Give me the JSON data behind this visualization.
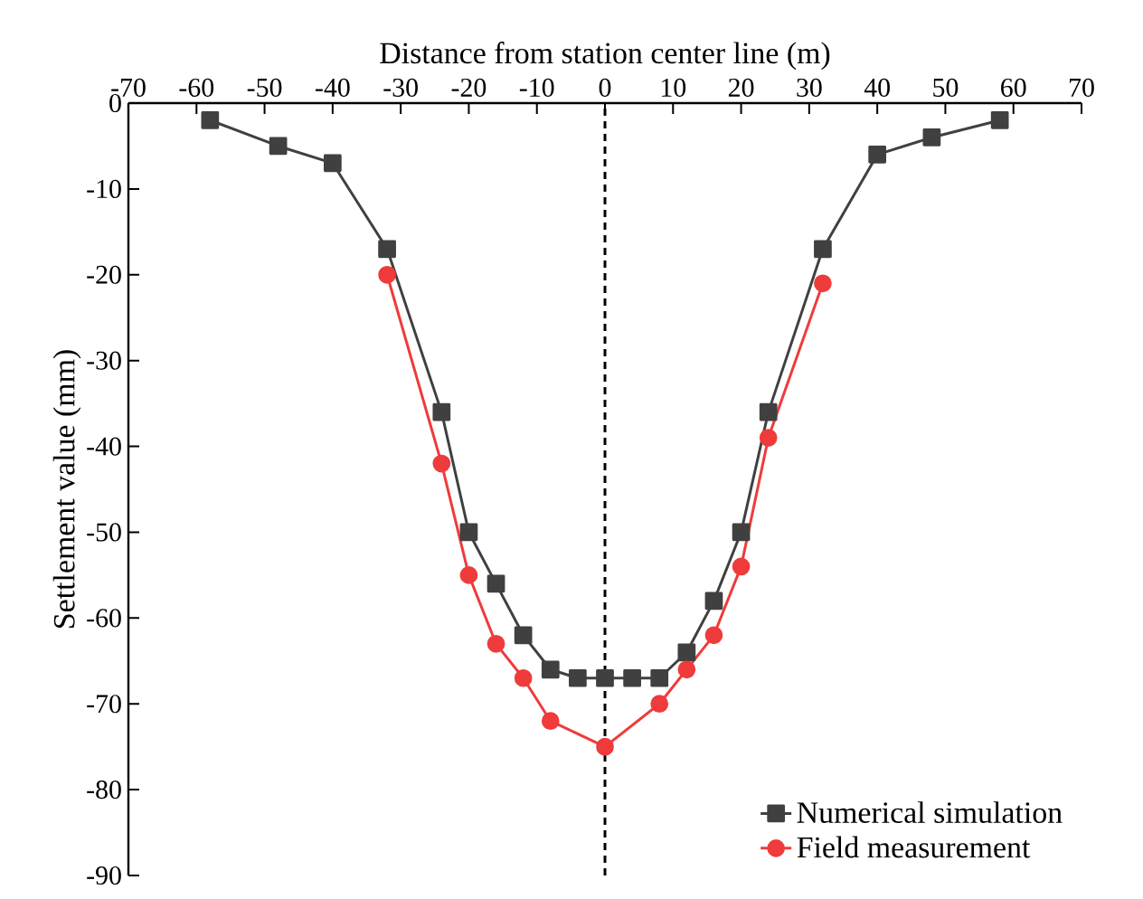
{
  "chart_data": {
    "type": "line",
    "xlabel": "Distance from station center line (m)",
    "ylabel": "Settlement value (mm)",
    "xlim": [
      -70,
      70
    ],
    "xticks": [
      -70,
      -60,
      -50,
      -40,
      -30,
      -20,
      -10,
      0,
      10,
      20,
      30,
      40,
      50,
      60,
      70
    ],
    "ylim": [
      -90,
      0
    ],
    "yticks": [
      -90,
      -80,
      -70,
      -60,
      -50,
      -40,
      -30,
      -20,
      -10,
      0
    ],
    "grid": false,
    "legend": "bottom right",
    "line_style": "solid",
    "ref_lines": [
      {
        "axis": "x",
        "value": 0,
        "color": "#000000",
        "line_style": "dashed"
      }
    ],
    "series": [
      {
        "name": "Numerical simulation",
        "color": "#404040",
        "marker": "square",
        "x": [
          -58,
          -48,
          -40,
          -32,
          -24,
          -20,
          -16,
          -12,
          -8,
          -4,
          0,
          4,
          8,
          12,
          16,
          20,
          24,
          32,
          40,
          48,
          58
        ],
        "values": [
          -2,
          -5,
          -7,
          -17,
          -36,
          -50,
          -56,
          -62,
          -66,
          -67,
          -67,
          -67,
          -67,
          -64,
          -58,
          -50,
          -36,
          -17,
          -6,
          -4,
          -2
        ]
      },
      {
        "name": "Field measurement",
        "color": "#ef3b3b",
        "marker": "circle",
        "x": [
          -32,
          -24,
          -20,
          -16,
          -12,
          -8,
          0,
          8,
          12,
          16,
          20,
          24,
          32
        ],
        "values": [
          -20,
          -42,
          -55,
          -63,
          -67,
          -72,
          -75,
          -70,
          -66,
          -62,
          -54,
          -39,
          -21
        ]
      }
    ]
  }
}
